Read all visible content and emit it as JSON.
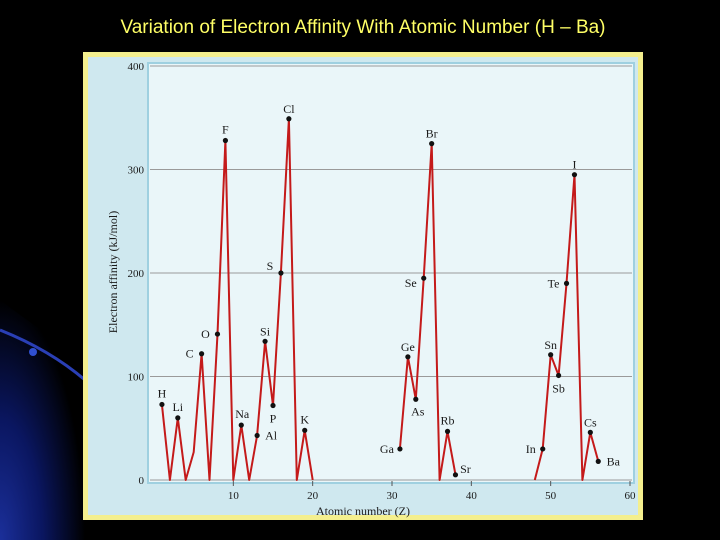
{
  "chart_data": {
    "type": "line",
    "title": "Variation of Electron Affinity With Atomic Number (H – Ba)",
    "xlabel": "Atomic number (Z)",
    "ylabel": "Electron affinity (kJ/mol)",
    "x": [
      1,
      2,
      3,
      4,
      5,
      6,
      7,
      8,
      9,
      10,
      11,
      12,
      13,
      14,
      15,
      16,
      17,
      18,
      19,
      20,
      21,
      22,
      23,
      24,
      25,
      26,
      27,
      28,
      29,
      30,
      31,
      32,
      33,
      34,
      35,
      36,
      37,
      38,
      39,
      40,
      41,
      42,
      43,
      44,
      45,
      46,
      47,
      48,
      49,
      50,
      51,
      52,
      53,
      54,
      55,
      56
    ],
    "values": [
      73,
      0,
      60,
      0,
      27,
      122,
      0,
      141,
      328,
      0,
      53,
      0,
      43,
      134,
      72,
      200,
      349,
      0,
      48,
      0,
      null,
      null,
      null,
      null,
      null,
      null,
      null,
      null,
      null,
      null,
      30,
      119,
      78,
      195,
      325,
      0,
      47,
      5,
      null,
      null,
      null,
      null,
      null,
      null,
      null,
      null,
      null,
      0,
      30,
      121,
      101,
      190,
      295,
      0,
      46,
      18
    ],
    "point_labels": [
      "H",
      null,
      "Li",
      null,
      null,
      "C",
      null,
      "O",
      "F",
      null,
      "Na",
      null,
      "Al",
      "Si",
      "P",
      "S",
      "Cl",
      null,
      "K",
      null,
      null,
      null,
      null,
      null,
      null,
      null,
      null,
      null,
      null,
      null,
      "Ga",
      "Ge",
      "As",
      "Se",
      "Br",
      null,
      "Rb",
      "Sr",
      null,
      null,
      null,
      null,
      null,
      null,
      null,
      null,
      null,
      null,
      "In",
      "Sn",
      "Sb",
      "Te",
      "I",
      null,
      "Cs",
      "Ba"
    ],
    "color": "#c41a1a",
    "xlim": [
      0,
      60
    ],
    "ylim": [
      0,
      400
    ],
    "xticks": [
      10,
      20,
      30,
      40,
      50,
      60
    ],
    "yticks": [
      0,
      100,
      200,
      300,
      400
    ],
    "grid": true
  }
}
